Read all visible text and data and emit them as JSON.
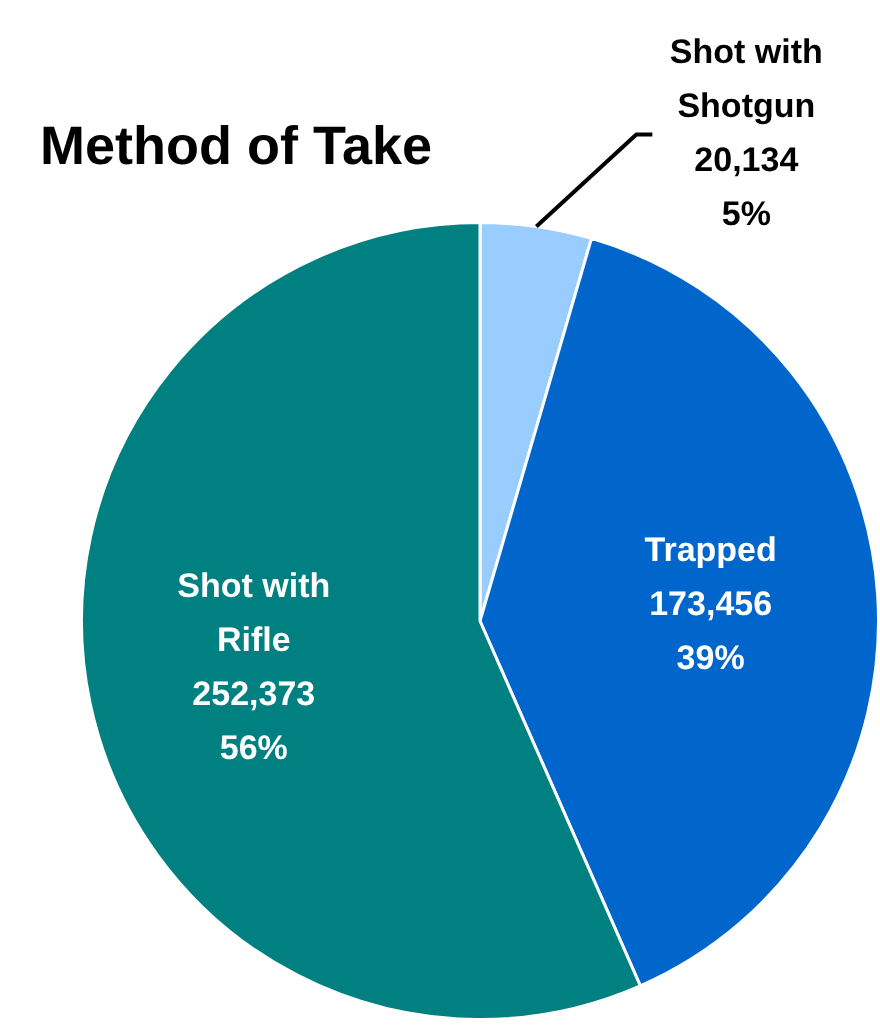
{
  "chart_data": {
    "type": "pie",
    "title": "Method of Take",
    "categories": [
      "Shot with Shotgun",
      "Trapped",
      "Shot with Rifle"
    ],
    "values": [
      20134,
      173456,
      252373
    ],
    "colors": [
      "#99ccff",
      "#0066cc",
      "#008080"
    ],
    "value_labels": [
      "20,134\n5%",
      "173,456\n39%",
      "252,373\n56%"
    ],
    "legend": false
  }
}
